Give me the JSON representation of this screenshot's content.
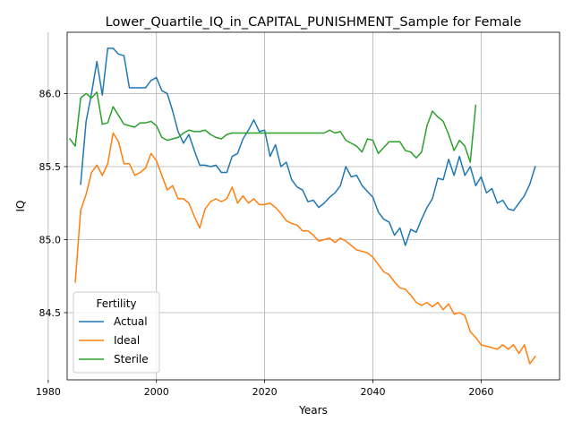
{
  "chart_data": {
    "type": "line",
    "title": "Lower_Quartile_IQ_in_CAPITAL_PUNISHMENT_Sample for Female",
    "xlabel": "Years",
    "ylabel": "IQ",
    "xlim": [
      1983.5,
      2074.5
    ],
    "ylim": [
      84.04,
      86.42
    ],
    "xticks": [
      1980,
      2000,
      2020,
      2040,
      2060
    ],
    "yticks": [
      84.5,
      85.0,
      85.5,
      86.0
    ],
    "ytick_labels": [
      "84.5",
      "85.0",
      "85.5",
      "86.0"
    ],
    "grid": true,
    "legend": {
      "title": "Fertility",
      "placement": "lower-left"
    },
    "series": [
      {
        "name": "Actual",
        "color": "#1f77b4",
        "x": [
          1986,
          1987,
          1988,
          1989,
          1990,
          1991,
          1992,
          1993,
          1994,
          1995,
          1996,
          1997,
          1998,
          1999,
          2000,
          2001,
          2002,
          2003,
          2004,
          2005,
          2006,
          2007,
          2008,
          2009,
          2010,
          2011,
          2012,
          2013,
          2014,
          2015,
          2016,
          2017,
          2018,
          2019,
          2020,
          2021,
          2022,
          2023,
          2024,
          2025,
          2026,
          2027,
          2028,
          2029,
          2030,
          2031,
          2032,
          2033,
          2034,
          2035,
          2036,
          2037,
          2038,
          2039,
          2040,
          2041,
          2042,
          2043,
          2044,
          2045,
          2046,
          2047,
          2048,
          2049,
          2050,
          2051,
          2052,
          2053,
          2054,
          2055,
          2056,
          2057,
          2058,
          2059,
          2060,
          2061,
          2062,
          2063,
          2064,
          2065,
          2066,
          2067,
          2068,
          2069,
          2070
        ],
        "y": [
          85.38,
          85.81,
          86.0,
          86.22,
          85.99,
          86.31,
          86.31,
          86.27,
          86.26,
          86.04,
          86.04,
          86.04,
          86.04,
          86.09,
          86.11,
          86.02,
          86.0,
          85.88,
          85.74,
          85.66,
          85.72,
          85.61,
          85.51,
          85.51,
          85.5,
          85.51,
          85.46,
          85.46,
          85.57,
          85.59,
          85.69,
          85.75,
          85.82,
          85.74,
          85.75,
          85.57,
          85.65,
          85.5,
          85.53,
          85.41,
          85.36,
          85.34,
          85.26,
          85.27,
          85.22,
          85.25,
          85.29,
          85.32,
          85.37,
          85.5,
          85.43,
          85.44,
          85.37,
          85.33,
          85.29,
          85.19,
          85.14,
          85.12,
          85.03,
          85.08,
          84.96,
          85.07,
          85.05,
          85.14,
          85.22,
          85.28,
          85.42,
          85.41,
          85.55,
          85.44,
          85.57,
          85.44,
          85.5,
          85.37,
          85.43,
          85.32,
          85.35,
          85.25,
          85.27,
          85.21,
          85.2,
          85.25,
          85.3,
          85.38,
          85.5
        ]
      },
      {
        "name": "Ideal",
        "color": "#ff7f0e",
        "x": [
          1985,
          1986,
          1987,
          1988,
          1989,
          1990,
          1991,
          1992,
          1993,
          1994,
          1995,
          1996,
          1997,
          1998,
          1999,
          2000,
          2001,
          2002,
          2003,
          2004,
          2005,
          2006,
          2007,
          2008,
          2009,
          2010,
          2011,
          2012,
          2013,
          2014,
          2015,
          2016,
          2017,
          2018,
          2019,
          2020,
          2021,
          2022,
          2023,
          2024,
          2025,
          2026,
          2027,
          2028,
          2029,
          2030,
          2031,
          2032,
          2033,
          2034,
          2035,
          2036,
          2037,
          2038,
          2039,
          2040,
          2041,
          2042,
          2043,
          2044,
          2045,
          2046,
          2047,
          2048,
          2049,
          2050,
          2051,
          2052,
          2053,
          2054,
          2055,
          2056,
          2057,
          2058,
          2059,
          2060,
          2061,
          2062,
          2063,
          2064,
          2065,
          2066,
          2067,
          2068,
          2069,
          2070
        ],
        "y": [
          84.71,
          85.2,
          85.31,
          85.46,
          85.51,
          85.44,
          85.52,
          85.73,
          85.67,
          85.52,
          85.52,
          85.44,
          85.46,
          85.49,
          85.59,
          85.54,
          85.44,
          85.34,
          85.37,
          85.28,
          85.28,
          85.25,
          85.16,
          85.08,
          85.21,
          85.26,
          85.28,
          85.26,
          85.28,
          85.36,
          85.25,
          85.3,
          85.25,
          85.28,
          85.24,
          85.24,
          85.25,
          85.22,
          85.18,
          85.13,
          85.11,
          85.1,
          85.06,
          85.06,
          85.03,
          84.99,
          85.0,
          85.01,
          84.98,
          85.01,
          84.99,
          84.96,
          84.93,
          84.92,
          84.91,
          84.88,
          84.83,
          84.78,
          84.76,
          84.71,
          84.67,
          84.66,
          84.62,
          84.57,
          84.55,
          84.57,
          84.54,
          84.57,
          84.52,
          84.56,
          84.49,
          84.5,
          84.48,
          84.37,
          84.33,
          84.28,
          84.27,
          84.26,
          84.25,
          84.28,
          84.25,
          84.28,
          84.22,
          84.28,
          84.15,
          84.2
        ]
      },
      {
        "name": "Sterile",
        "color": "#2ca02c",
        "x": [
          1984,
          1985,
          1986,
          1987,
          1988,
          1989,
          1990,
          1991,
          1992,
          1993,
          1994,
          1995,
          1996,
          1997,
          1998,
          1999,
          2000,
          2001,
          2002,
          2003,
          2004,
          2005,
          2006,
          2007,
          2008,
          2009,
          2010,
          2011,
          2012,
          2013,
          2014,
          2015,
          2016,
          2017,
          2018,
          2019,
          2020,
          2021,
          2022,
          2023,
          2024,
          2025,
          2026,
          2027,
          2028,
          2029,
          2030,
          2031,
          2032,
          2033,
          2034,
          2035,
          2036,
          2037,
          2038,
          2039,
          2040,
          2041,
          2042,
          2043,
          2044,
          2045,
          2046,
          2047,
          2048,
          2049,
          2050,
          2051,
          2052,
          2053,
          2054,
          2055,
          2056,
          2057,
          2058,
          2059
        ],
        "y": [
          85.69,
          85.64,
          85.97,
          86.0,
          85.97,
          86.01,
          85.79,
          85.8,
          85.91,
          85.85,
          85.79,
          85.78,
          85.77,
          85.8,
          85.8,
          85.81,
          85.78,
          85.7,
          85.68,
          85.69,
          85.7,
          85.73,
          85.75,
          85.74,
          85.74,
          85.75,
          85.72,
          85.7,
          85.69,
          85.72,
          85.73,
          85.73,
          85.73,
          85.73,
          85.73,
          85.73,
          85.73,
          85.73,
          85.73,
          85.73,
          85.73,
          85.73,
          85.73,
          85.73,
          85.73,
          85.73,
          85.73,
          85.73,
          85.75,
          85.73,
          85.74,
          85.68,
          85.66,
          85.64,
          85.6,
          85.69,
          85.68,
          85.59,
          85.63,
          85.67,
          85.67,
          85.67,
          85.61,
          85.6,
          85.56,
          85.6,
          85.78,
          85.88,
          85.84,
          85.81,
          85.72,
          85.61,
          85.68,
          85.64,
          85.53,
          85.92
        ]
      }
    ]
  }
}
